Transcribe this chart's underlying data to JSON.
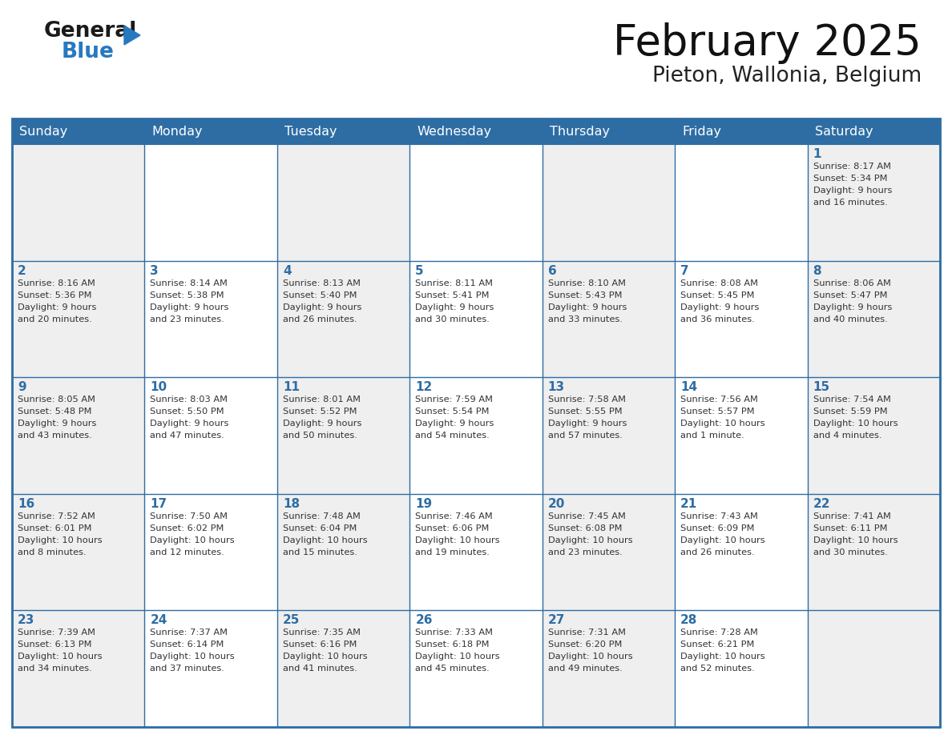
{
  "title": "February 2025",
  "subtitle": "Pieton, Wallonia, Belgium",
  "days_of_week": [
    "Sunday",
    "Monday",
    "Tuesday",
    "Wednesday",
    "Thursday",
    "Friday",
    "Saturday"
  ],
  "header_bg": "#2E6DA4",
  "header_text": "#FFFFFF",
  "cell_bg_light": "#EFEFEF",
  "cell_bg_white": "#FFFFFF",
  "border_color": "#2E6DA4",
  "text_color": "#333333",
  "day_number_color": "#2E6DA4",
  "logo_general_color": "#1a1a1a",
  "logo_blue_color": "#2878BE",
  "days": [
    {
      "day": 1,
      "col": 6,
      "row": 0,
      "sunrise": "8:17 AM",
      "sunset": "5:34 PM",
      "daylight": "9 hours and 16 minutes."
    },
    {
      "day": 2,
      "col": 0,
      "row": 1,
      "sunrise": "8:16 AM",
      "sunset": "5:36 PM",
      "daylight": "9 hours and 20 minutes."
    },
    {
      "day": 3,
      "col": 1,
      "row": 1,
      "sunrise": "8:14 AM",
      "sunset": "5:38 PM",
      "daylight": "9 hours and 23 minutes."
    },
    {
      "day": 4,
      "col": 2,
      "row": 1,
      "sunrise": "8:13 AM",
      "sunset": "5:40 PM",
      "daylight": "9 hours and 26 minutes."
    },
    {
      "day": 5,
      "col": 3,
      "row": 1,
      "sunrise": "8:11 AM",
      "sunset": "5:41 PM",
      "daylight": "9 hours and 30 minutes."
    },
    {
      "day": 6,
      "col": 4,
      "row": 1,
      "sunrise": "8:10 AM",
      "sunset": "5:43 PM",
      "daylight": "9 hours and 33 minutes."
    },
    {
      "day": 7,
      "col": 5,
      "row": 1,
      "sunrise": "8:08 AM",
      "sunset": "5:45 PM",
      "daylight": "9 hours and 36 minutes."
    },
    {
      "day": 8,
      "col": 6,
      "row": 1,
      "sunrise": "8:06 AM",
      "sunset": "5:47 PM",
      "daylight": "9 hours and 40 minutes."
    },
    {
      "day": 9,
      "col": 0,
      "row": 2,
      "sunrise": "8:05 AM",
      "sunset": "5:48 PM",
      "daylight": "9 hours and 43 minutes."
    },
    {
      "day": 10,
      "col": 1,
      "row": 2,
      "sunrise": "8:03 AM",
      "sunset": "5:50 PM",
      "daylight": "9 hours and 47 minutes."
    },
    {
      "day": 11,
      "col": 2,
      "row": 2,
      "sunrise": "8:01 AM",
      "sunset": "5:52 PM",
      "daylight": "9 hours and 50 minutes."
    },
    {
      "day": 12,
      "col": 3,
      "row": 2,
      "sunrise": "7:59 AM",
      "sunset": "5:54 PM",
      "daylight": "9 hours and 54 minutes."
    },
    {
      "day": 13,
      "col": 4,
      "row": 2,
      "sunrise": "7:58 AM",
      "sunset": "5:55 PM",
      "daylight": "9 hours and 57 minutes."
    },
    {
      "day": 14,
      "col": 5,
      "row": 2,
      "sunrise": "7:56 AM",
      "sunset": "5:57 PM",
      "daylight": "10 hours and 1 minute."
    },
    {
      "day": 15,
      "col": 6,
      "row": 2,
      "sunrise": "7:54 AM",
      "sunset": "5:59 PM",
      "daylight": "10 hours and 4 minutes."
    },
    {
      "day": 16,
      "col": 0,
      "row": 3,
      "sunrise": "7:52 AM",
      "sunset": "6:01 PM",
      "daylight": "10 hours and 8 minutes."
    },
    {
      "day": 17,
      "col": 1,
      "row": 3,
      "sunrise": "7:50 AM",
      "sunset": "6:02 PM",
      "daylight": "10 hours and 12 minutes."
    },
    {
      "day": 18,
      "col": 2,
      "row": 3,
      "sunrise": "7:48 AM",
      "sunset": "6:04 PM",
      "daylight": "10 hours and 15 minutes."
    },
    {
      "day": 19,
      "col": 3,
      "row": 3,
      "sunrise": "7:46 AM",
      "sunset": "6:06 PM",
      "daylight": "10 hours and 19 minutes."
    },
    {
      "day": 20,
      "col": 4,
      "row": 3,
      "sunrise": "7:45 AM",
      "sunset": "6:08 PM",
      "daylight": "10 hours and 23 minutes."
    },
    {
      "day": 21,
      "col": 5,
      "row": 3,
      "sunrise": "7:43 AM",
      "sunset": "6:09 PM",
      "daylight": "10 hours and 26 minutes."
    },
    {
      "day": 22,
      "col": 6,
      "row": 3,
      "sunrise": "7:41 AM",
      "sunset": "6:11 PM",
      "daylight": "10 hours and 30 minutes."
    },
    {
      "day": 23,
      "col": 0,
      "row": 4,
      "sunrise": "7:39 AM",
      "sunset": "6:13 PM",
      "daylight": "10 hours and 34 minutes."
    },
    {
      "day": 24,
      "col": 1,
      "row": 4,
      "sunrise": "7:37 AM",
      "sunset": "6:14 PM",
      "daylight": "10 hours and 37 minutes."
    },
    {
      "day": 25,
      "col": 2,
      "row": 4,
      "sunrise": "7:35 AM",
      "sunset": "6:16 PM",
      "daylight": "10 hours and 41 minutes."
    },
    {
      "day": 26,
      "col": 3,
      "row": 4,
      "sunrise": "7:33 AM",
      "sunset": "6:18 PM",
      "daylight": "10 hours and 45 minutes."
    },
    {
      "day": 27,
      "col": 4,
      "row": 4,
      "sunrise": "7:31 AM",
      "sunset": "6:20 PM",
      "daylight": "10 hours and 49 minutes."
    },
    {
      "day": 28,
      "col": 5,
      "row": 4,
      "sunrise": "7:28 AM",
      "sunset": "6:21 PM",
      "daylight": "10 hours and 52 minutes."
    }
  ]
}
